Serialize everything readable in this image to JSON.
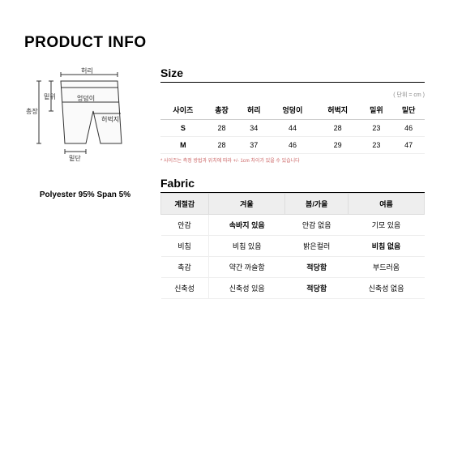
{
  "title": "PRODUCT INFO",
  "material": "Polyester 95% Span 5%",
  "size": {
    "heading": "Size",
    "unit": "( 단위 = cm )",
    "headers": [
      "사이즈",
      "총장",
      "허리",
      "엉덩이",
      "허벅지",
      "밑위",
      "밑단"
    ],
    "rows": [
      [
        "S",
        "28",
        "34",
        "44",
        "28",
        "23",
        "46"
      ],
      [
        "M",
        "28",
        "37",
        "46",
        "29",
        "23",
        "47"
      ]
    ],
    "note": "* 사이즈는 측정 방법과 위치에 따라 +/- 1cm 차이가 있을 수 있습니다"
  },
  "fabric": {
    "heading": "Fabric",
    "headers": [
      "",
      "겨울",
      "봄/가을",
      "여름"
    ],
    "rowLabels": [
      "계절감",
      "안감",
      "비침",
      "촉감",
      "신축성"
    ],
    "cells": [
      [
        "겨울",
        "봄/가을",
        "여름"
      ],
      [
        "속바지 있음",
        "안감 없음",
        "기모 있음"
      ],
      [
        "비침 있음",
        "밝은컬러",
        "비침 없음"
      ],
      [
        "약간 까슬함",
        "적당함",
        "부드러움"
      ],
      [
        "신축성 있음",
        "적당함",
        "신축성 없음"
      ]
    ],
    "boldMap": [
      [
        0,
        0,
        0
      ],
      [
        1,
        0,
        0
      ],
      [
        0,
        0,
        1
      ],
      [
        0,
        1,
        0
      ],
      [
        0,
        1,
        0
      ]
    ]
  },
  "diagram": {
    "labels": {
      "waist": "허리",
      "hip": "엉덩이",
      "thigh": "허벅지",
      "rise": "밑위",
      "length": "총장",
      "hem": "밑단"
    },
    "stroke": "#333",
    "fill": "#f5f5f5"
  }
}
